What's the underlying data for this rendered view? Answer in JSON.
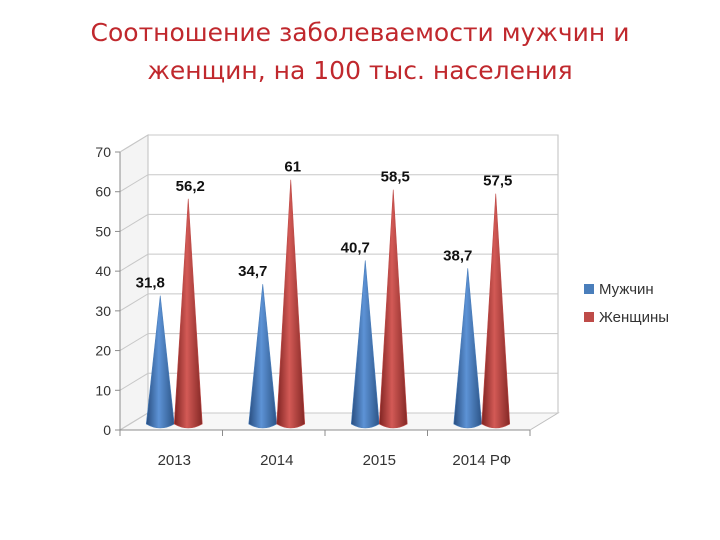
{
  "title": {
    "line1": "Соотношение заболеваемости мужчин и",
    "line2": "женщин, на 100 тыс. населения"
  },
  "chart_data": {
    "type": "bar",
    "style": "3d-cone",
    "categories": [
      "2013",
      "2014",
      "2015",
      "2014 РФ"
    ],
    "series": [
      {
        "name": "Мужчин",
        "values": [
          31.8,
          34.7,
          40.7,
          38.7
        ],
        "labels": [
          "31,8",
          "34,7",
          "40,7",
          "38,7"
        ],
        "color": "#4a7ebb"
      },
      {
        "name": "Женщины",
        "values": [
          56.2,
          61,
          58.5,
          57.5
        ],
        "labels": [
          "56,2",
          "61",
          "58,5",
          "57,5"
        ],
        "color": "#be4b48"
      }
    ],
    "yticks": [
      0,
      10,
      20,
      30,
      40,
      50,
      60,
      70
    ],
    "ylim": [
      0,
      70
    ],
    "grid": true,
    "legend": "right"
  }
}
